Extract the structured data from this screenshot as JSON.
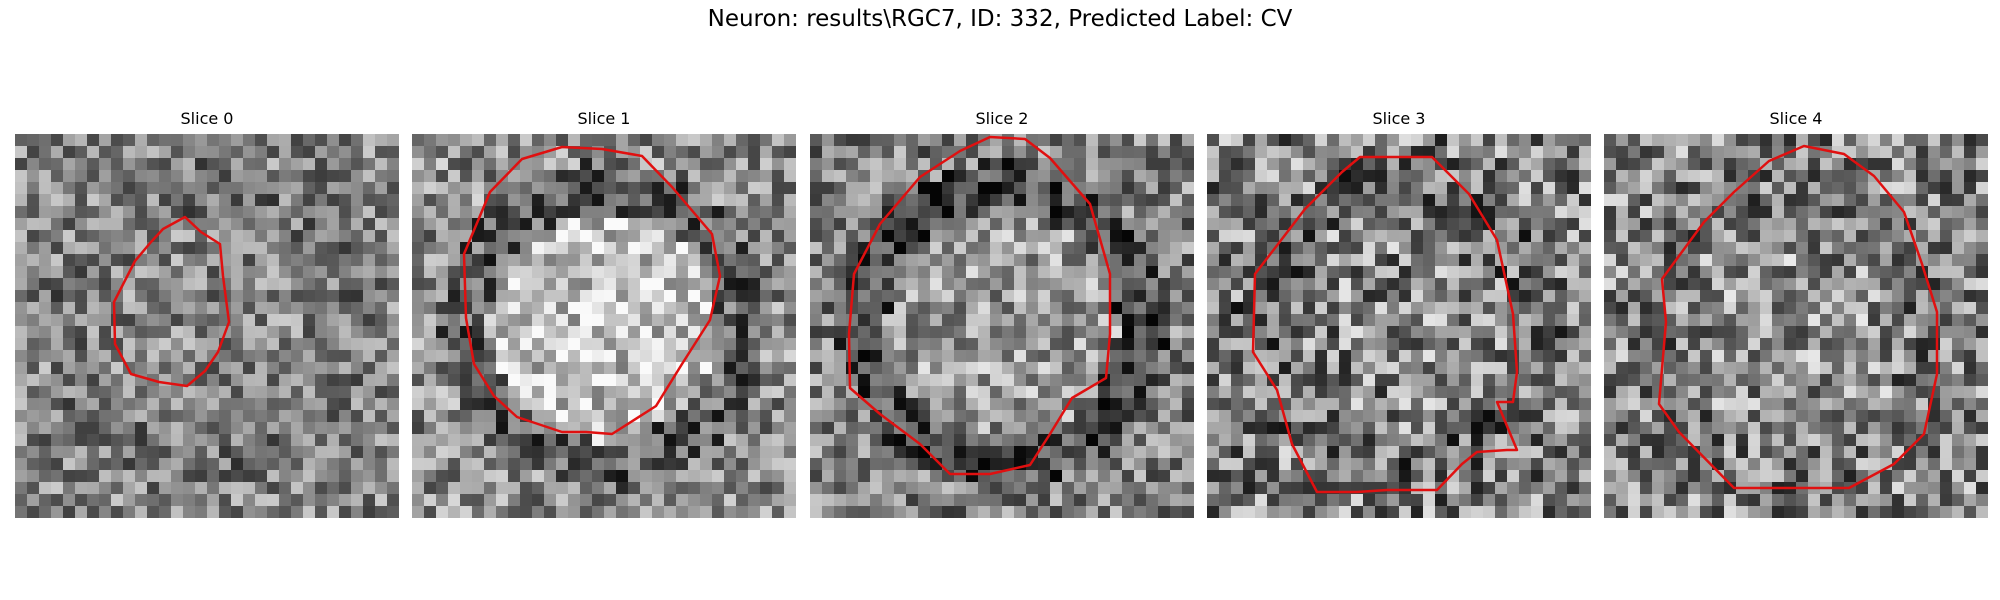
{
  "figure": {
    "title": "Neuron: results\\RGC7, ID: 332, Predicted Label: CV"
  },
  "panels": [
    {
      "title": "Slice 0",
      "seed": 11,
      "base": 0.52,
      "contrast": 0.28,
      "inner": 0.0,
      "ring": -0.06
    },
    {
      "title": "Slice 1",
      "seed": 23,
      "base": 0.55,
      "contrast": 0.3,
      "inner": 0.22,
      "ring": -0.18
    },
    {
      "title": "Slice 2",
      "seed": 37,
      "base": 0.5,
      "contrast": 0.3,
      "inner": 0.1,
      "ring": -0.22
    },
    {
      "title": "Slice 3",
      "seed": 41,
      "base": 0.5,
      "contrast": 0.38,
      "inner": 0.02,
      "ring": -0.08
    },
    {
      "title": "Slice 4",
      "seed": 59,
      "base": 0.52,
      "contrast": 0.36,
      "inner": 0.04,
      "ring": -0.04
    }
  ],
  "colors": {
    "contour": "#e01010"
  }
}
